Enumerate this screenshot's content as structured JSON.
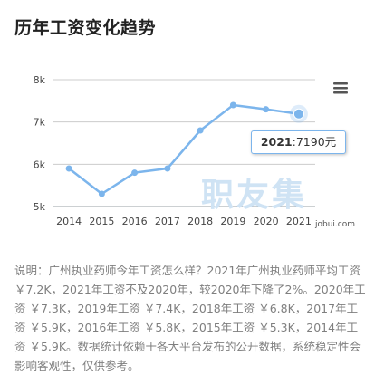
{
  "page_title": "历年工资变化趋势",
  "chart_data": {
    "type": "line",
    "title": "",
    "xlabel": "",
    "ylabel": "",
    "categories": [
      "2014",
      "2015",
      "2016",
      "2017",
      "2018",
      "2019",
      "2020",
      "2021"
    ],
    "series": [
      {
        "values": [
          5.9,
          5.3,
          5.8,
          5.9,
          6.8,
          7.4,
          7.3,
          7.19
        ],
        "color": "#7cb5ec"
      }
    ],
    "y_ticks": [
      "5k",
      "6k",
      "7k",
      "8k"
    ],
    "ylim": [
      5,
      8
    ],
    "grid": true,
    "legend": "none",
    "tooltip": {
      "year": "2021",
      "value": "7190元"
    }
  },
  "menu": {
    "icon": "hamburger-menu-icon"
  },
  "watermark": {
    "brand": "职友集",
    "site": "jobui.com"
  },
  "description": "说明：广州执业药师今年工资怎么样？2021年广州执业药师平均工资 ￥7.2K，2021年工资不及2020年，较2020年下降了2%。2020年工资 ￥7.3K，2019年工资 ￥7.4K，2018年工资 ￥6.8K，2017年工资 ￥5.9K，2016年工资 ￥5.8K，2015年工资 ￥5.3K，2014年工资 ￥5.9K。数据统计依赖于各大平台发布的公开数据，系统稳定性会影响客观性，仅供参考。"
}
